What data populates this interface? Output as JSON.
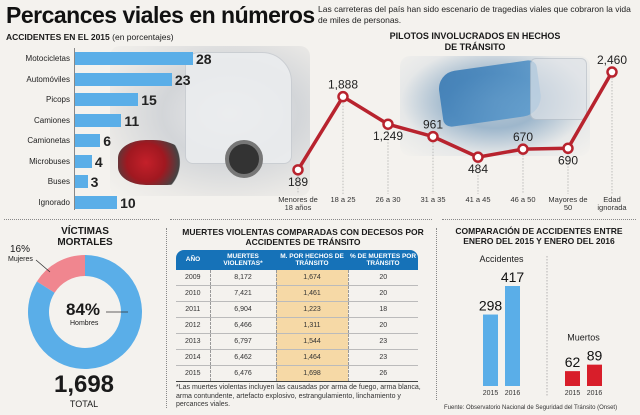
{
  "header": {
    "title": "Percances viales en números",
    "intro": "Las carreteras del país han sido escenario de tragedias viales que cobraron la vida de miles de personas."
  },
  "chart_data": [
    {
      "type": "bar",
      "orientation": "horizontal",
      "title": "ACCIDENTES EN EL 2015",
      "subtitle": "(en porcentajes)",
      "categories": [
        "Motocicletas",
        "Automóviles",
        "Picops",
        "Camiones",
        "Camionetas",
        "Microbuses",
        "Buses",
        "Ignorado"
      ],
      "values": [
        28,
        23,
        15,
        11,
        6,
        4,
        3,
        10
      ],
      "color": "#5aaee8"
    },
    {
      "type": "line",
      "title": "PILOTOS INVOLUCRADOS EN HECHOS DE TRÁNSITO",
      "categories": [
        "Menores de 18 años",
        "18 a 25",
        "26 a 30",
        "31 a 35",
        "41 a 45",
        "46 a 50",
        "Mayores de 50",
        "Edad ignorada"
      ],
      "values": [
        189,
        1888,
        1249,
        961,
        484,
        670,
        690,
        2460
      ],
      "labels": [
        "189",
        "1,888",
        "1,249",
        "961",
        "484",
        "670",
        "690",
        "2,460"
      ],
      "ylim": [
        0,
        2600
      ],
      "color": "#b8232e"
    },
    {
      "type": "pie",
      "variant": "donut",
      "title": "VÍCTIMAS MORTALES",
      "slices": [
        {
          "label": "Mujeres",
          "value": 16,
          "display": "16%",
          "color": "#f0868f"
        },
        {
          "label": "Hombres",
          "value": 84,
          "display": "84%",
          "color": "#5aaee8"
        }
      ],
      "total_value": "1,698",
      "total_label": "TOTAL"
    },
    {
      "type": "table",
      "title": "MUERTES VIOLENTAS COMPARADAS CON DECESOS POR ACCIDENTES DE TRÁNSITO",
      "columns": [
        "AÑO",
        "MUERTES VIOLENTAS*",
        "M. POR HECHOS DE TRÁNSITO",
        "% DE MUERTES POR TRÁNSITO"
      ],
      "rows": [
        [
          "2009",
          "8,172",
          "1,674",
          "20"
        ],
        [
          "2010",
          "7,421",
          "1,461",
          "20"
        ],
        [
          "2011",
          "6,904",
          "1,223",
          "18"
        ],
        [
          "2012",
          "6,466",
          "1,311",
          "20"
        ],
        [
          "2013",
          "6,797",
          "1,544",
          "23"
        ],
        [
          "2014",
          "6,462",
          "1,464",
          "23"
        ],
        [
          "2015",
          "6,476",
          "1,698",
          "26"
        ]
      ],
      "note": "*Las muertes violentas incluyen las causadas por arma de fuego, arma blanca, arma contundente, artefacto explosivo, estrangulamiento, linchamiento y percances viales."
    },
    {
      "type": "bar",
      "title": "COMPARACIÓN DE ACCIDENTES ENTRE ENERO DEL 2015 Y ENERO DEL 2016",
      "groups": [
        {
          "name": "Accidentes",
          "categories": [
            "2015",
            "2016"
          ],
          "values": [
            298,
            417
          ],
          "color": "#5aaee8"
        },
        {
          "name": "Muertos",
          "categories": [
            "2015",
            "2016"
          ],
          "values": [
            62,
            89
          ],
          "color": "#d81e2a"
        }
      ],
      "source": "Fuente: Observatorio Nacional de Seguridad del Tránsito (Onset)"
    }
  ]
}
